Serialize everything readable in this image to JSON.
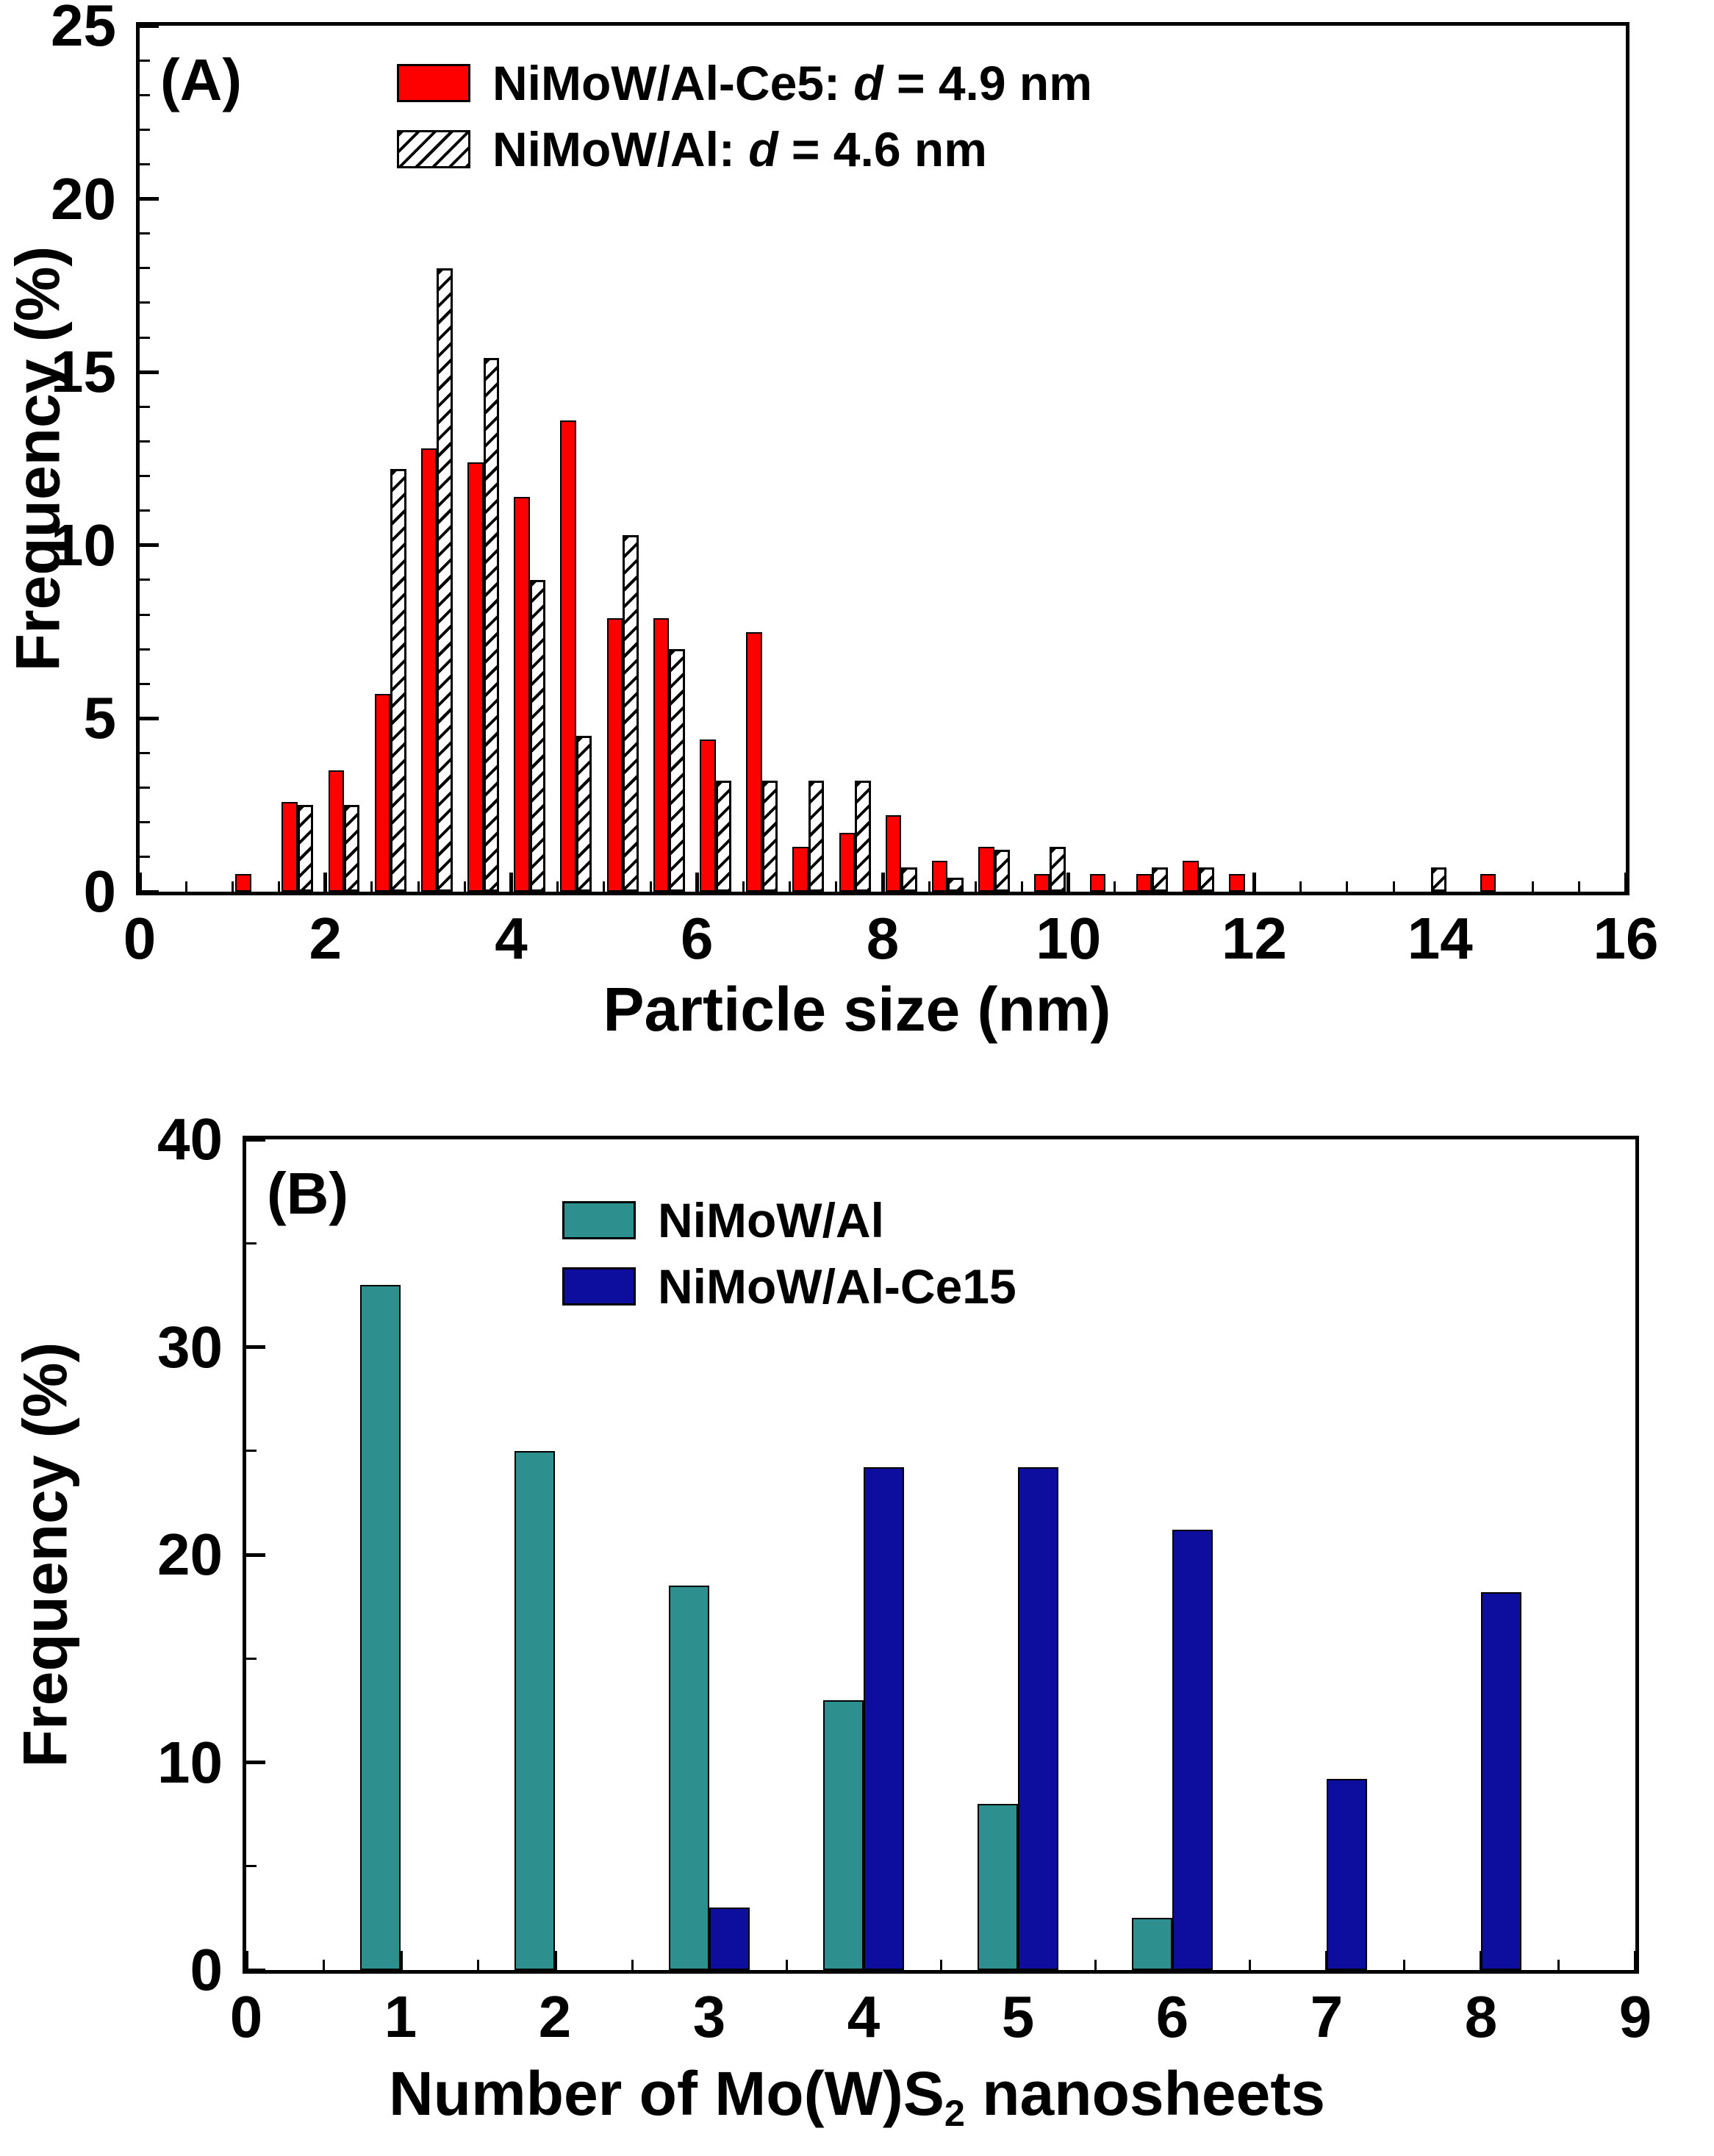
{
  "figure": {
    "background": "#FFFFFF"
  },
  "chart_data": [
    {
      "panel_label": "(A)",
      "type": "bar",
      "xlabel": "Particle size (nm)",
      "ylabel": "Frequency (%)",
      "xlim": [
        0,
        16
      ],
      "ylim": [
        0,
        25
      ],
      "x_ticks": [
        0,
        2,
        4,
        6,
        8,
        10,
        12,
        14,
        16
      ],
      "y_ticks": [
        0,
        5,
        10,
        15,
        20,
        25
      ],
      "x_minor_step": 0.5,
      "y_minor_step": 1,
      "bar_width": 0.17,
      "grid": false,
      "legend_position": "top-center-right-inside",
      "series": [
        {
          "key": "nimow-al-ce5",
          "name": "NiMoW/Al-Ce5",
          "style": "solid",
          "color": "#FF0000",
          "offset": -0.17,
          "legend_parts": [
            "NiMoW/Al-Ce5: ",
            "d",
            " = 4.9 nm"
          ]
        },
        {
          "key": "nimow-al",
          "name": "NiMoW/Al",
          "style": "hatched",
          "color": "#FFFFFF",
          "hatch_color": "#000000",
          "offset": 0.0,
          "legend_parts": [
            "NiMoW/Al: ",
            "d",
            " = 4.6 nm"
          ]
        }
      ],
      "bins_format": [
        "particle_size_nm",
        "NiMoW/Al-Ce5_pct",
        "NiMoW/Al_pct"
      ],
      "bins": [
        [
          1.2,
          0.5,
          0
        ],
        [
          1.7,
          2.6,
          2.5
        ],
        [
          2.2,
          3.5,
          2.5
        ],
        [
          2.7,
          5.7,
          12.2
        ],
        [
          3.2,
          12.8,
          18.0
        ],
        [
          3.7,
          12.4,
          15.4
        ],
        [
          4.2,
          11.4,
          9.0
        ],
        [
          4.7,
          13.6,
          4.5
        ],
        [
          5.2,
          7.9,
          10.3
        ],
        [
          5.7,
          7.9,
          7.0
        ],
        [
          6.2,
          4.4,
          3.2
        ],
        [
          6.7,
          7.5,
          3.2
        ],
        [
          7.2,
          1.3,
          3.2
        ],
        [
          7.7,
          1.7,
          3.2
        ],
        [
          8.2,
          2.2,
          0.7
        ],
        [
          8.7,
          0.9,
          0.4
        ],
        [
          9.2,
          1.3,
          1.2
        ],
        [
          9.8,
          0.5,
          1.3
        ],
        [
          10.4,
          0.5,
          0
        ],
        [
          10.9,
          0.5,
          0.7
        ],
        [
          11.4,
          0.9,
          0.7
        ],
        [
          11.9,
          0.5,
          0
        ],
        [
          13.9,
          0,
          0.7
        ],
        [
          14.6,
          0.5,
          0
        ]
      ]
    },
    {
      "panel_label": "(B)",
      "type": "bar",
      "xlabel_parts": [
        "Number of Mo(W)S",
        "2",
        " nanosheets"
      ],
      "ylabel": "Frequency (%)",
      "xlim": [
        0,
        9
      ],
      "ylim": [
        0,
        40
      ],
      "x_ticks": [
        0,
        1,
        2,
        3,
        4,
        5,
        6,
        7,
        8,
        9
      ],
      "y_ticks": [
        0,
        10,
        20,
        30,
        40
      ],
      "x_minor_step": 0.5,
      "y_minor_step": 5,
      "bar_width": 0.26,
      "grid": false,
      "legend_position": "top-center-inside",
      "series": [
        {
          "key": "nimow-al",
          "name": "NiMoW/Al",
          "style": "solid",
          "color": "#2E8F8F",
          "offset": -0.26,
          "legend_parts": [
            "NiMoW/Al"
          ]
        },
        {
          "key": "nimow-al-ce15",
          "name": "NiMoW/Al-Ce15",
          "style": "solid",
          "color": "#0D0D9E",
          "offset": 0.0,
          "legend_parts": [
            "NiMoW/Al-Ce15"
          ]
        }
      ],
      "bins_format": [
        "nanosheet_count",
        "NiMoW/Al_pct",
        "NiMoW/Al-Ce15_pct"
      ],
      "bins": [
        [
          1,
          33.0,
          0
        ],
        [
          2,
          25.0,
          0
        ],
        [
          3,
          18.5,
          3.0
        ],
        [
          4,
          13.0,
          24.2
        ],
        [
          5,
          8.0,
          24.2
        ],
        [
          6,
          2.5,
          21.2
        ],
        [
          7,
          0,
          9.2
        ],
        [
          8,
          0,
          18.2
        ]
      ]
    }
  ]
}
